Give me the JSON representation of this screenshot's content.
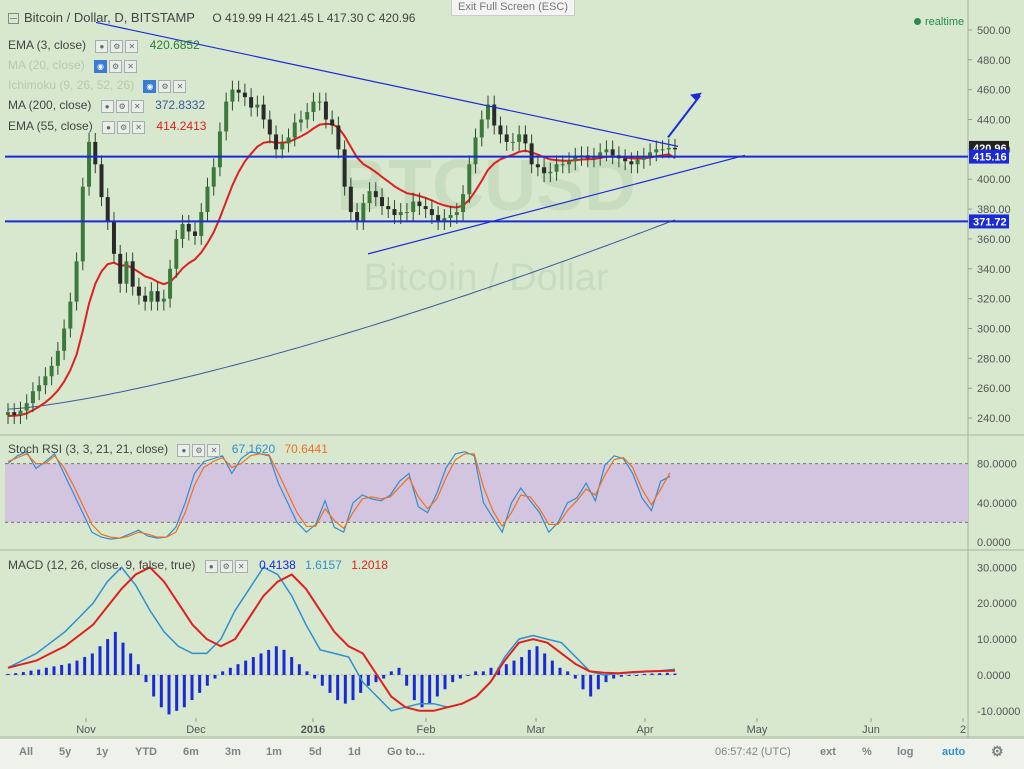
{
  "exit_fullscreen": "Exit Full Screen (ESC)",
  "title": "Bitcoin / Dollar, D, BITSTAMP",
  "ohlc": {
    "open": "O 419.99",
    "high": "H 421.45",
    "low": "L 417.30",
    "close": "C 420.96"
  },
  "realtime": "realtime",
  "watermark": {
    "ticker": "BTCUSD",
    "name": "Bitcoin / Dollar"
  },
  "indicators": [
    {
      "label": "EMA (3, close)",
      "value": "420.6852",
      "color": "#2e7d32"
    },
    {
      "label": "MA (20, close)",
      "value": "",
      "color": "#b9c7ad"
    },
    {
      "label": "Ichimoku (9, 26, 52, 26)",
      "value": "",
      "color": "#b9c7ad"
    },
    {
      "label": "MA (200, close)",
      "value": "372.8332",
      "color": "#3a5a9a"
    },
    {
      "label": "EMA (55, close)",
      "value": "414.2413",
      "color": "#e02020"
    }
  ],
  "stoch_rsi": {
    "label": "Stoch RSI (3, 3, 21, 21, close)",
    "k": "67.1620",
    "d": "70.6441",
    "k_color": "#2f8fd0",
    "d_color": "#f07020"
  },
  "macd": {
    "label": "MACD (12, 26, close, 9, false, true)",
    "hist": "0.4138",
    "macd": "1.6157",
    "signal": "1.2018",
    "hist_color": "#1a2ad8",
    "macd_color": "#2f8fd0",
    "signal_color": "#e02020"
  },
  "price_labels": {
    "last": "420.96",
    "line1": "415.16",
    "line2": "371.72"
  },
  "bottom_bar": {
    "all": "All",
    "y5": "5y",
    "y1": "1y",
    "ytd": "YTD",
    "m6": "6m",
    "m3": "3m",
    "m1": "1m",
    "d5": "5d",
    "d1": "1d",
    "goto": "Go to...",
    "time": "06:57:42 (UTC)",
    "ext": "ext",
    "pct": "%",
    "log": "log",
    "auto": "auto"
  },
  "chart_data": [
    {
      "type": "candlestick",
      "title": "Bitcoin / Dollar, D, BITSTAMP",
      "x_ticks": [
        "Nov",
        "Dec",
        "2016",
        "Feb",
        "Mar",
        "Apr",
        "May",
        "Jun",
        "2"
      ],
      "y_ticks": [
        240,
        260,
        280,
        300,
        320,
        340,
        360,
        380,
        400,
        420,
        440,
        460,
        480,
        500
      ],
      "ylim": [
        230,
        510
      ],
      "days": 190,
      "closes": [
        244,
        242,
        245,
        250,
        258,
        262,
        268,
        275,
        285,
        300,
        318,
        345,
        395,
        425,
        410,
        388,
        372,
        350,
        330,
        345,
        328,
        322,
        318,
        325,
        318,
        320,
        340,
        360,
        370,
        365,
        362,
        378,
        395,
        408,
        432,
        452,
        460,
        458,
        455,
        448,
        450,
        440,
        430,
        420,
        424,
        428,
        438,
        440,
        445,
        452,
        452,
        440,
        436,
        420,
        395,
        378,
        372,
        384,
        392,
        388,
        382,
        380,
        376,
        378,
        378,
        385,
        382,
        380,
        376,
        372,
        374,
        376,
        378,
        390,
        410,
        428,
        440,
        450,
        436,
        430,
        425,
        425,
        430,
        424,
        410,
        408,
        404,
        405,
        410,
        410,
        412,
        415,
        416,
        414,
        415,
        418,
        420,
        416,
        414,
        412,
        410,
        413,
        415,
        418,
        420,
        420,
        421,
        420
      ],
      "emas": {
        "ema55_start": 241,
        "ema55_end": 414.2,
        "ma200_start": 246,
        "ma200_end": 372.8
      },
      "trendlines": [
        {
          "from": [
            "Nov",
            505
          ],
          "to": [
            "Apr",
            422
          ]
        },
        {
          "from": [
            "Jan",
            350
          ],
          "to": [
            "May",
            416
          ]
        }
      ],
      "horizontal_levels": [
        415.16,
        371.72
      ],
      "last": 420.96,
      "series": [
        {
          "name": "EMA (3, close)",
          "value": 420.6852
        },
        {
          "name": "MA (200, close)",
          "value": 372.8332
        },
        {
          "name": "EMA (55, close)",
          "value": 414.2413
        }
      ]
    },
    {
      "type": "line",
      "title": "Stoch RSI (3, 3, 21, 21, close)",
      "ylim": [
        0,
        100
      ],
      "y_ticks": [
        "80.0000",
        "40.0000",
        "0.0000"
      ],
      "band": [
        20,
        80
      ],
      "series": [
        {
          "name": "K",
          "values": [
            80,
            88,
            92,
            75,
            82,
            90,
            70,
            50,
            30,
            10,
            5,
            3,
            4,
            8,
            12,
            6,
            4,
            5,
            15,
            40,
            70,
            82,
            85,
            88,
            70,
            85,
            92,
            90,
            88,
            60,
            40,
            20,
            10,
            18,
            42,
            15,
            10,
            40,
            48,
            44,
            42,
            48,
            62,
            70,
            36,
            30,
            50,
            76,
            90,
            92,
            88,
            40,
            25,
            10,
            40,
            55,
            42,
            30,
            10,
            20,
            40,
            45,
            60,
            42,
            78,
            88,
            85,
            70,
            45,
            32,
            62,
            67
          ]
        },
        {
          "name": "D",
          "values": [
            82,
            86,
            90,
            80,
            80,
            88,
            76,
            58,
            38,
            18,
            8,
            5,
            4,
            6,
            10,
            8,
            5,
            5,
            10,
            30,
            58,
            76,
            82,
            86,
            76,
            80,
            88,
            90,
            89,
            70,
            50,
            30,
            16,
            16,
            34,
            22,
            14,
            30,
            44,
            46,
            44,
            46,
            56,
            66,
            46,
            34,
            44,
            66,
            84,
            90,
            90,
            56,
            32,
            16,
            30,
            48,
            46,
            34,
            18,
            18,
            32,
            42,
            54,
            48,
            68,
            84,
            86,
            76,
            54,
            38,
            54,
            70.6
          ]
        }
      ],
      "values": {
        "k": 67.162,
        "d": 70.6441
      }
    },
    {
      "type": "bar",
      "title": "MACD (12, 26, close, 9, false, true)",
      "ylim": [
        -12,
        34
      ],
      "y_ticks": [
        "30.0000",
        "20.0000",
        "10.0000",
        "0.0000",
        "-10.0000"
      ],
      "series": [
        {
          "name": "Histogram",
          "values": [
            0.3,
            0.5,
            0.8,
            1.2,
            1.5,
            2,
            2.4,
            2.8,
            3.2,
            4,
            5,
            6,
            8,
            10,
            12,
            9,
            6,
            3,
            -2,
            -6,
            -9,
            -11,
            -10,
            -9,
            -7,
            -5,
            -3,
            -1,
            1,
            2,
            3,
            4,
            5,
            6,
            7,
            8,
            7,
            5,
            3,
            1,
            -1,
            -3,
            -5,
            -7,
            -8,
            -7,
            -5,
            -3,
            -2,
            -1,
            1,
            2,
            -3,
            -7,
            -9,
            -8,
            -6,
            -4,
            -2,
            -1,
            0,
            1,
            1,
            2,
            2,
            3,
            4,
            5,
            7,
            8,
            6,
            4,
            2,
            1,
            -1,
            -4,
            -6,
            -4,
            -2,
            -1,
            -0.5,
            -0.2,
            0,
            0.3,
            0.4,
            0.5,
            0.6,
            0.4
          ]
        },
        {
          "name": "MACD",
          "values": [
            2,
            4,
            6,
            9,
            12,
            16,
            20,
            26,
            30,
            25,
            18,
            12,
            8,
            6,
            6,
            10,
            18,
            24,
            30,
            28,
            22,
            14,
            7,
            6,
            5,
            -2,
            -6,
            -10,
            -9,
            -8,
            -8,
            -9,
            -8,
            -6,
            -2,
            5,
            10,
            11,
            10,
            9,
            5,
            1,
            0,
            0.4,
            0.6,
            0.9,
            1.2,
            1.6
          ]
        },
        {
          "name": "Signal",
          "values": [
            2,
            3,
            4,
            6,
            8,
            11,
            14,
            19,
            24,
            28,
            30,
            26,
            20,
            14,
            10,
            8,
            10,
            16,
            22,
            26,
            28,
            24,
            18,
            12,
            8,
            6,
            0,
            -6,
            -9,
            -10,
            -10,
            -9,
            -8,
            -6,
            -2,
            4,
            9,
            10,
            9,
            6,
            3,
            1,
            0.6,
            0.5,
            0.8,
            1,
            1.1,
            1.2
          ]
        }
      ],
      "values": {
        "histogram": 0.4138,
        "macd": 1.6157,
        "signal": 1.2018
      }
    }
  ]
}
